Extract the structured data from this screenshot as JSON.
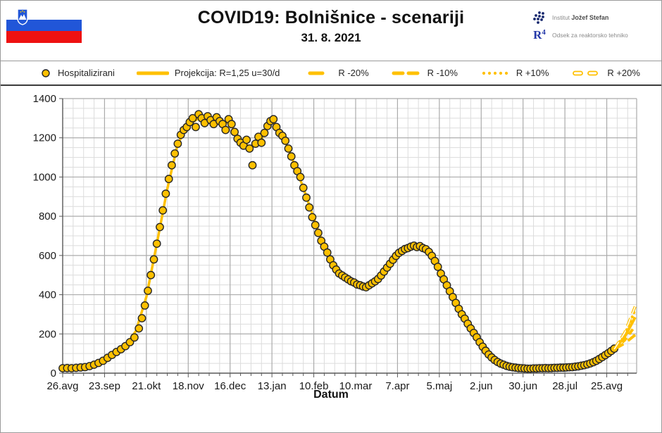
{
  "header": {
    "title": "COVID19: Bolnišnice - scenariji",
    "subtitle": "31. 8. 2021",
    "flag_colors": {
      "white": "#ffffff",
      "blue": "#2156d8",
      "red": "#ee1111"
    },
    "institute_light": "Institut",
    "institute_bold": "Jožef Stefan",
    "r4_mark": "R",
    "r4_sub": "4",
    "department": "Odsek za reaktorsko tehniko",
    "logo_dot_color": "#17286e"
  },
  "legend": {
    "items": [
      {
        "key": "hospitalizirani",
        "label": "Hospitalizirani",
        "swatch": "marker"
      },
      {
        "key": "projekcija",
        "label": "Projekcija: R=1,25 u=30/d",
        "swatch": "solid"
      },
      {
        "key": "r_minus20",
        "label": "R -20%",
        "swatch": "dash_long"
      },
      {
        "key": "r_minus10",
        "label": "R -10%",
        "swatch": "dash_double"
      },
      {
        "key": "r_plus10",
        "label": "R +10%",
        "swatch": "dots"
      },
      {
        "key": "r_plus20",
        "label": "R +20%",
        "swatch": "dash_hollow"
      }
    ]
  },
  "chart_data": {
    "type": "scatter",
    "title": "COVID19: Bolnišnice - scenariji",
    "subtitle": "31. 8. 2021",
    "xlabel": "Datum",
    "ylabel": "",
    "y_axis": {
      "min": 0,
      "max": 1400,
      "major_step": 200,
      "minor_step": 50
    },
    "x_axis": {
      "min_day": 0,
      "max_day": 384,
      "major_step_days": 28,
      "minor_step_days": 7
    },
    "x_ticks": [
      {
        "label": "26.avg",
        "day": 0
      },
      {
        "label": "23.sep",
        "day": 28
      },
      {
        "label": "21.okt",
        "day": 56
      },
      {
        "label": "18.nov",
        "day": 84
      },
      {
        "label": "16.dec",
        "day": 112
      },
      {
        "label": "13.jan",
        "day": 140
      },
      {
        "label": "10.feb",
        "day": 168
      },
      {
        "label": "10.mar",
        "day": 196
      },
      {
        "label": "7.apr",
        "day": 224
      },
      {
        "label": "5.maj",
        "day": 252
      },
      {
        "label": "2.jun",
        "day": 280
      },
      {
        "label": "30.jun",
        "day": 308
      },
      {
        "label": "28.jul",
        "day": 336
      },
      {
        "label": "25.avg",
        "day": 364
      }
    ],
    "colors": {
      "marker_fill": "#FFC000",
      "marker_stroke": "#262626",
      "line": "#FFC000",
      "grid_major": "#ababab",
      "grid_minor": "#dcdcdc",
      "axis": "#595959",
      "tick_text": "#1a1a1a"
    },
    "series_name": "Hospitalizirani",
    "hospitalized_points": [
      [
        0,
        25
      ],
      [
        3,
        26
      ],
      [
        6,
        25
      ],
      [
        9,
        27
      ],
      [
        12,
        29
      ],
      [
        15,
        31
      ],
      [
        18,
        36
      ],
      [
        21,
        43
      ],
      [
        24,
        52
      ],
      [
        27,
        63
      ],
      [
        30,
        78
      ],
      [
        33,
        93
      ],
      [
        36,
        108
      ],
      [
        39,
        122
      ],
      [
        42,
        138
      ],
      [
        45,
        158
      ],
      [
        48,
        182
      ],
      [
        51,
        228
      ],
      [
        53,
        280
      ],
      [
        55,
        345
      ],
      [
        57,
        420
      ],
      [
        59,
        500
      ],
      [
        61,
        580
      ],
      [
        63,
        660
      ],
      [
        65,
        745
      ],
      [
        67,
        830
      ],
      [
        69,
        915
      ],
      [
        71,
        990
      ],
      [
        73,
        1060
      ],
      [
        75,
        1120
      ],
      [
        77,
        1170
      ],
      [
        79,
        1215
      ],
      [
        81,
        1240
      ],
      [
        83,
        1255
      ],
      [
        85,
        1280
      ],
      [
        87,
        1300
      ],
      [
        89,
        1255
      ],
      [
        91,
        1320
      ],
      [
        93,
        1300
      ],
      [
        95,
        1275
      ],
      [
        97,
        1310
      ],
      [
        99,
        1290
      ],
      [
        101,
        1270
      ],
      [
        103,
        1305
      ],
      [
        105,
        1285
      ],
      [
        107,
        1270
      ],
      [
        109,
        1240
      ],
      [
        111,
        1295
      ],
      [
        113,
        1270
      ],
      [
        115,
        1230
      ],
      [
        117,
        1195
      ],
      [
        119,
        1175
      ],
      [
        121,
        1160
      ],
      [
        123,
        1190
      ],
      [
        125,
        1145
      ],
      [
        127,
        1060
      ],
      [
        129,
        1170
      ],
      [
        131,
        1205
      ],
      [
        133,
        1175
      ],
      [
        135,
        1225
      ],
      [
        137,
        1260
      ],
      [
        139,
        1285
      ],
      [
        141,
        1295
      ],
      [
        143,
        1255
      ],
      [
        145,
        1225
      ],
      [
        147,
        1210
      ],
      [
        149,
        1185
      ],
      [
        151,
        1145
      ],
      [
        153,
        1105
      ],
      [
        155,
        1060
      ],
      [
        157,
        1030
      ],
      [
        159,
        1000
      ],
      [
        161,
        945
      ],
      [
        163,
        895
      ],
      [
        165,
        845
      ],
      [
        167,
        795
      ],
      [
        169,
        755
      ],
      [
        171,
        715
      ],
      [
        173,
        675
      ],
      [
        175,
        645
      ],
      [
        177,
        615
      ],
      [
        179,
        580
      ],
      [
        181,
        550
      ],
      [
        183,
        528
      ],
      [
        185,
        508
      ],
      [
        187,
        498
      ],
      [
        189,
        488
      ],
      [
        191,
        478
      ],
      [
        193,
        468
      ],
      [
        195,
        462
      ],
      [
        197,
        452
      ],
      [
        199,
        448
      ],
      [
        201,
        442
      ],
      [
        203,
        438
      ],
      [
        205,
        448
      ],
      [
        207,
        458
      ],
      [
        209,
        468
      ],
      [
        211,
        480
      ],
      [
        213,
        498
      ],
      [
        215,
        518
      ],
      [
        217,
        538
      ],
      [
        219,
        558
      ],
      [
        221,
        578
      ],
      [
        223,
        598
      ],
      [
        225,
        613
      ],
      [
        227,
        623
      ],
      [
        229,
        633
      ],
      [
        231,
        638
      ],
      [
        233,
        645
      ],
      [
        235,
        650
      ],
      [
        237,
        643
      ],
      [
        239,
        648
      ],
      [
        241,
        638
      ],
      [
        243,
        632
      ],
      [
        245,
        618
      ],
      [
        247,
        598
      ],
      [
        249,
        572
      ],
      [
        251,
        542
      ],
      [
        253,
        508
      ],
      [
        255,
        478
      ],
      [
        257,
        448
      ],
      [
        259,
        418
      ],
      [
        261,
        388
      ],
      [
        263,
        358
      ],
      [
        265,
        328
      ],
      [
        267,
        300
      ],
      [
        269,
        278
      ],
      [
        271,
        252
      ],
      [
        273,
        228
      ],
      [
        275,
        205
      ],
      [
        277,
        183
      ],
      [
        279,
        158
      ],
      [
        281,
        135
      ],
      [
        283,
        114
      ],
      [
        285,
        95
      ],
      [
        287,
        80
      ],
      [
        289,
        67
      ],
      [
        291,
        57
      ],
      [
        293,
        49
      ],
      [
        295,
        43
      ],
      [
        297,
        37
      ],
      [
        299,
        33
      ],
      [
        301,
        30
      ],
      [
        303,
        28
      ],
      [
        305,
        26
      ],
      [
        307,
        25
      ],
      [
        309,
        24
      ],
      [
        311,
        23
      ],
      [
        313,
        23
      ],
      [
        315,
        24
      ],
      [
        317,
        24
      ],
      [
        319,
        25
      ],
      [
        321,
        25
      ],
      [
        323,
        26
      ],
      [
        325,
        25
      ],
      [
        327,
        26
      ],
      [
        329,
        27
      ],
      [
        331,
        27
      ],
      [
        333,
        28
      ],
      [
        335,
        28
      ],
      [
        337,
        29
      ],
      [
        339,
        30
      ],
      [
        341,
        31
      ],
      [
        343,
        33
      ],
      [
        345,
        35
      ],
      [
        347,
        38
      ],
      [
        349,
        41
      ],
      [
        351,
        45
      ],
      [
        353,
        50
      ],
      [
        355,
        56
      ],
      [
        357,
        63
      ],
      [
        359,
        72
      ],
      [
        361,
        82
      ],
      [
        363,
        92
      ],
      [
        365,
        102
      ],
      [
        367,
        113
      ],
      [
        369,
        125
      ]
    ],
    "projection_fit": [
      [
        0,
        26
      ],
      [
        14,
        30
      ],
      [
        28,
        52
      ],
      [
        42,
        140
      ],
      [
        49,
        215
      ],
      [
        56,
        390
      ],
      [
        63,
        660
      ],
      [
        70,
        940
      ],
      [
        77,
        1170
      ],
      [
        84,
        1265
      ],
      [
        91,
        1300
      ],
      [
        98,
        1295
      ],
      [
        105,
        1285
      ],
      [
        112,
        1275
      ],
      [
        119,
        1185
      ],
      [
        126,
        1150
      ],
      [
        133,
        1195
      ],
      [
        140,
        1290
      ],
      [
        147,
        1215
      ],
      [
        154,
        1085
      ],
      [
        161,
        945
      ],
      [
        168,
        790
      ],
      [
        175,
        645
      ],
      [
        182,
        545
      ],
      [
        189,
        492
      ],
      [
        196,
        460
      ],
      [
        203,
        440
      ],
      [
        210,
        462
      ],
      [
        217,
        532
      ],
      [
        224,
        602
      ],
      [
        231,
        640
      ],
      [
        238,
        650
      ],
      [
        245,
        622
      ],
      [
        252,
        542
      ],
      [
        259,
        420
      ],
      [
        266,
        312
      ],
      [
        273,
        228
      ],
      [
        280,
        152
      ],
      [
        287,
        80
      ],
      [
        294,
        46
      ],
      [
        301,
        30
      ],
      [
        308,
        24
      ],
      [
        315,
        23
      ],
      [
        322,
        25
      ],
      [
        329,
        27
      ],
      [
        336,
        28
      ],
      [
        343,
        33
      ],
      [
        350,
        43
      ],
      [
        357,
        62
      ],
      [
        364,
        92
      ],
      [
        369,
        122
      ]
    ],
    "scenarios": [
      {
        "key": "r_minus20",
        "label": "R -20%",
        "style": "dash_long",
        "points": [
          [
            369,
            122
          ],
          [
            376,
            152
          ],
          [
            383,
            195
          ]
        ]
      },
      {
        "key": "r_minus10",
        "label": "R -10%",
        "style": "dash_double",
        "points": [
          [
            369,
            122
          ],
          [
            376,
            168
          ],
          [
            383,
            240
          ]
        ]
      },
      {
        "key": "projekcija",
        "label": "Projekcija: R=1,25 u=30/d",
        "style": "solid",
        "points": [
          [
            369,
            122
          ],
          [
            376,
            185
          ],
          [
            383,
            285
          ]
        ]
      },
      {
        "key": "r_plus10",
        "label": "R +10%",
        "style": "dots",
        "points": [
          [
            369,
            122
          ],
          [
            376,
            198
          ],
          [
            383,
            322
          ]
        ]
      },
      {
        "key": "r_plus20",
        "label": "R +20%",
        "style": "dash_hollow",
        "points": [
          [
            369,
            122
          ],
          [
            376,
            206
          ],
          [
            383,
            340
          ]
        ]
      }
    ]
  }
}
